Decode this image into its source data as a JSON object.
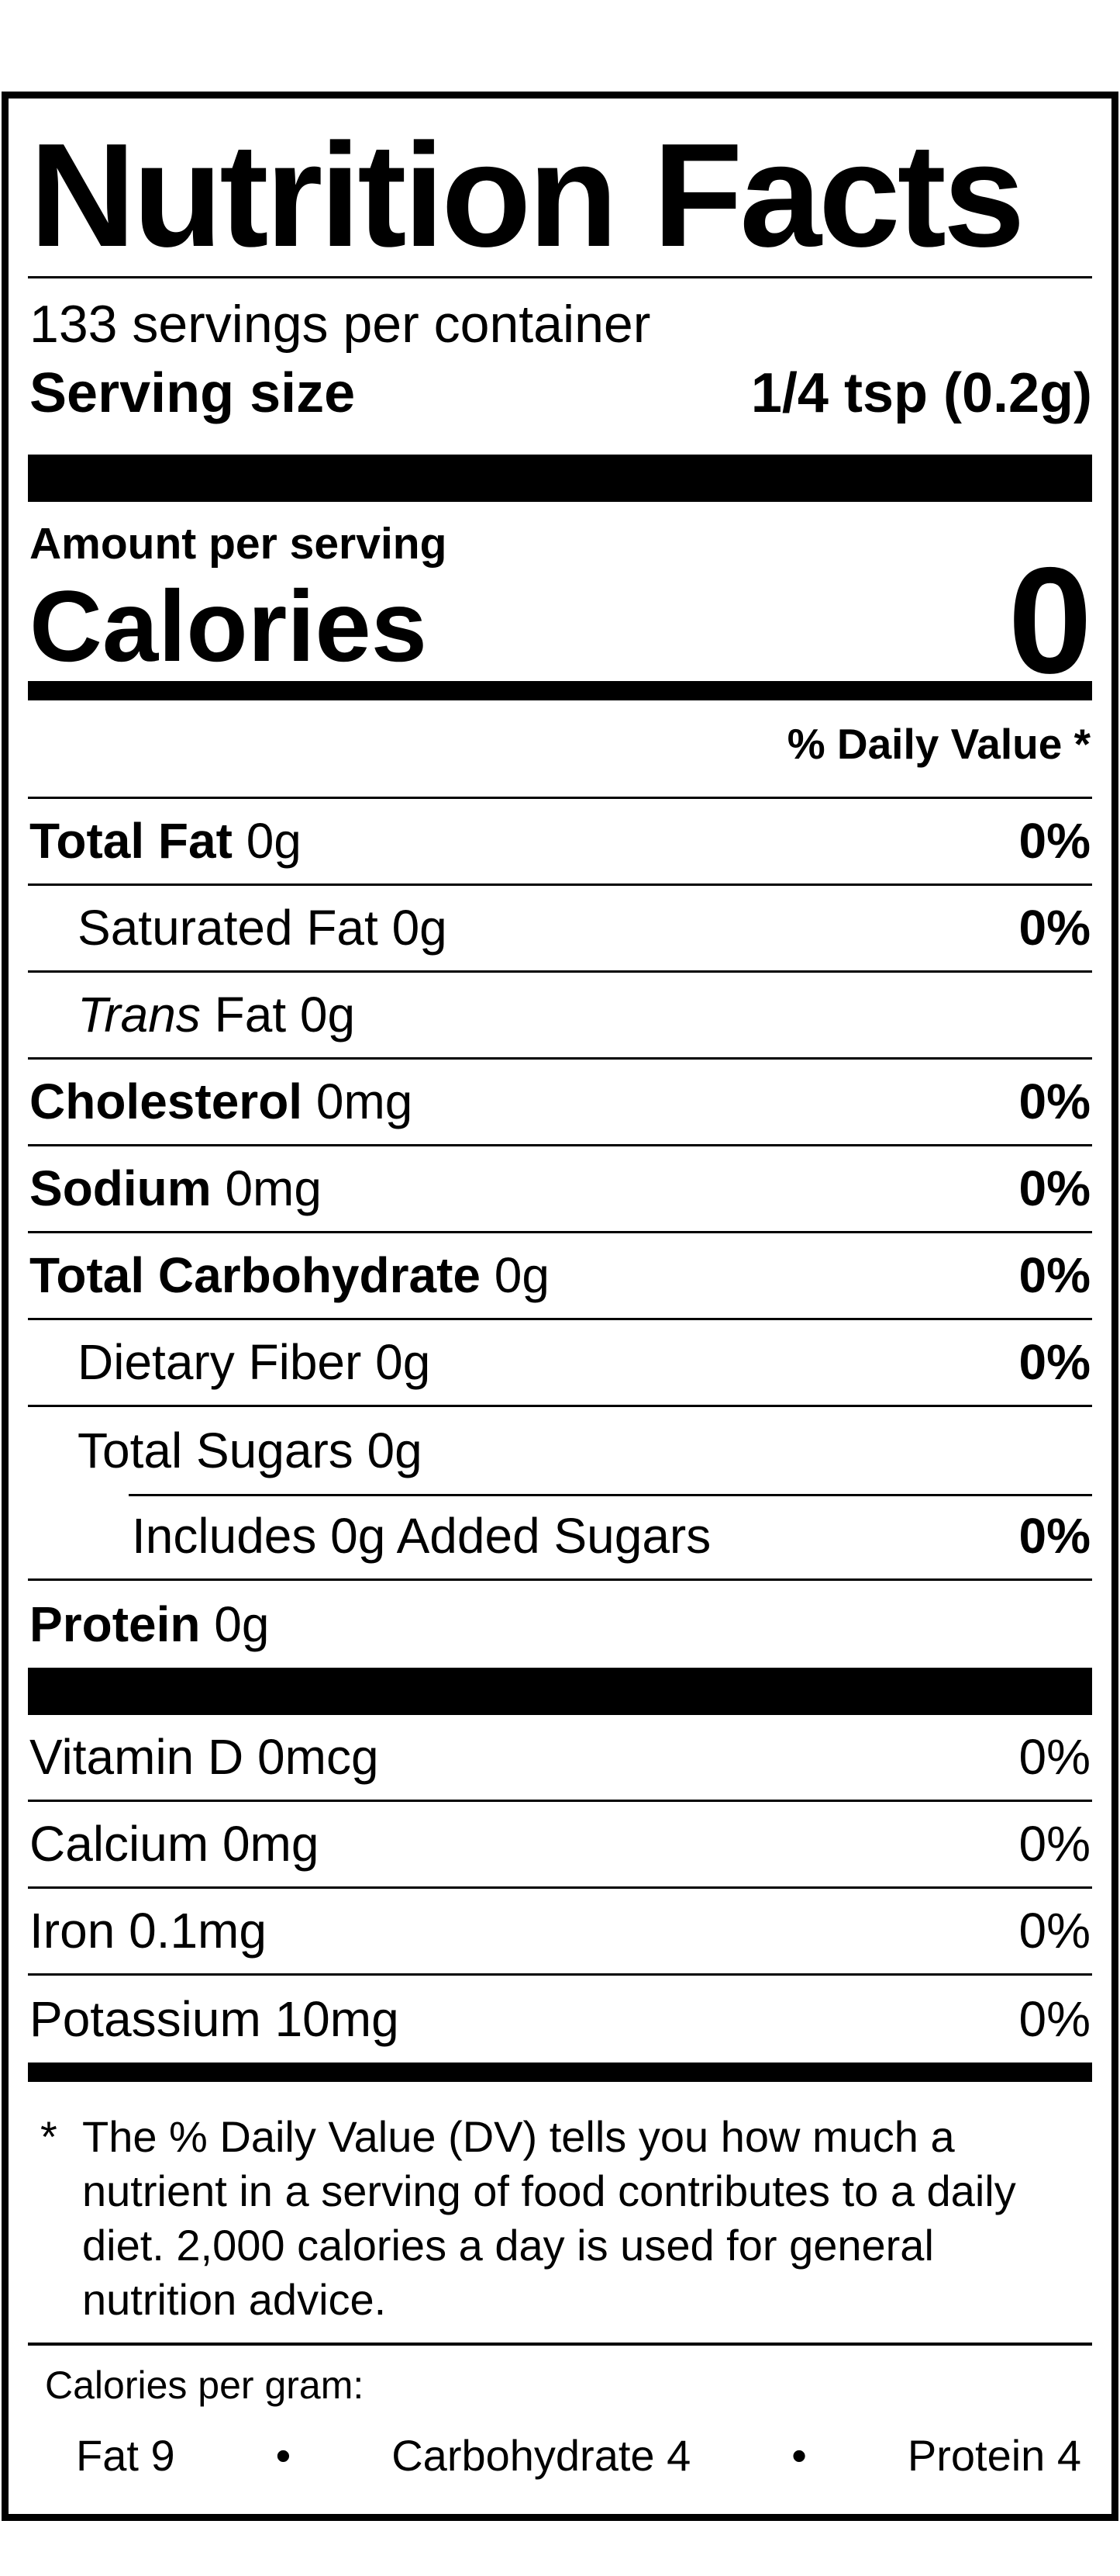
{
  "label": {
    "title": "Nutrition Facts",
    "servings_per_container": "133 servings per container",
    "serving_size": {
      "label": "Serving size",
      "value": "1/4 tsp (0.2g)"
    },
    "amount_per_serving": "Amount per serving",
    "calories": {
      "label": "Calories",
      "value": "0"
    },
    "daily_value_header": "% Daily Value *",
    "nutrient_rows": [
      {
        "name": "Total Fat",
        "amount": "0g",
        "dv": "0%"
      },
      {
        "name": "Saturated Fat",
        "amount": "0g",
        "dv": "0%"
      },
      {
        "name_italic": "Trans",
        "name": "Fat",
        "amount": "0g",
        "dv": ""
      },
      {
        "name": "Cholesterol",
        "amount": "0mg",
        "dv": "0%"
      },
      {
        "name": "Sodium",
        "amount": "0mg",
        "dv": "0%"
      },
      {
        "name": "Total Carbohydrate",
        "amount": "0g",
        "dv": "0%"
      },
      {
        "name": "Dietary Fiber",
        "amount": "0g",
        "dv": "0%"
      },
      {
        "name": "Total Sugars",
        "amount": "0g",
        "dv": ""
      },
      {
        "name": "Includes 0g Added Sugars",
        "amount": "",
        "dv": "0%"
      },
      {
        "name": "Protein",
        "amount": "0g",
        "dv": ""
      }
    ],
    "micronutrient_rows": [
      {
        "name": "Vitamin D",
        "amount": "0mcg",
        "dv": "0%"
      },
      {
        "name": "Calcium",
        "amount": "0mg",
        "dv": "0%"
      },
      {
        "name": "Iron",
        "amount": "0.1mg",
        "dv": "0%"
      },
      {
        "name": "Potassium",
        "amount": "10mg",
        "dv": "0%"
      }
    ],
    "footnote": {
      "marker": "*",
      "text": "The % Daily Value (DV) tells you how much a nutrient in a serving of food contributes to a daily diet. 2,000 calories a day is used for general nutrition advice."
    },
    "calories_per_gram": {
      "heading": "Calories per gram:",
      "items": [
        "Fat 9",
        "Carbohydrate 4",
        "Protein 4"
      ],
      "bullet": "•"
    }
  },
  "colors": {
    "ink": "#000000",
    "background": "#ffffff"
  }
}
